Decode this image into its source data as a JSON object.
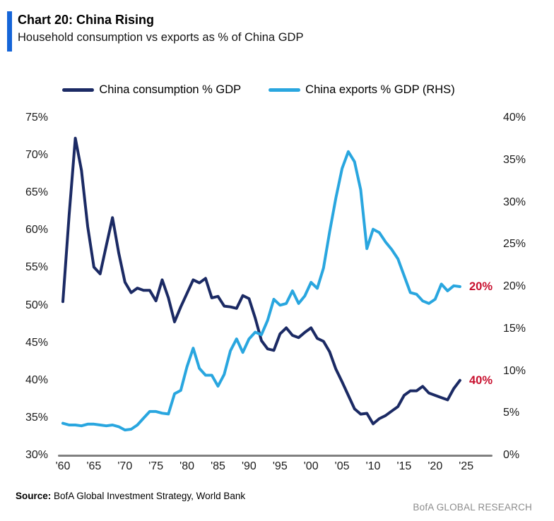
{
  "header": {
    "title": "Chart 20: China Rising",
    "subtitle": "Household consumption vs exports as % of China GDP",
    "accent_color": "#1565d8"
  },
  "footer": {
    "source_label": "Source:",
    "source_text": " BofA Global Investment Strategy, World Bank",
    "brand": "BofA GLOBAL RESEARCH",
    "brand_color": "#8c8c8c"
  },
  "chart_data": {
    "type": "line",
    "title": "Chart 20: China Rising",
    "subtitle": "Household consumption vs exports as % of China GDP",
    "legend_position": "top-center",
    "grid": false,
    "axis_line_color": "#808080",
    "annotation_color": "#c8102e",
    "x": [
      1960,
      1961,
      1962,
      1963,
      1964,
      1965,
      1966,
      1967,
      1968,
      1969,
      1970,
      1971,
      1972,
      1973,
      1974,
      1975,
      1976,
      1977,
      1978,
      1979,
      1980,
      1981,
      1982,
      1983,
      1984,
      1985,
      1986,
      1987,
      1988,
      1989,
      1990,
      1991,
      1992,
      1993,
      1994,
      1995,
      1996,
      1997,
      1998,
      1999,
      2000,
      2001,
      2002,
      2003,
      2004,
      2005,
      2006,
      2007,
      2008,
      2009,
      2010,
      2011,
      2012,
      2013,
      2014,
      2015,
      2016,
      2017,
      2018,
      2019,
      2020,
      2021,
      2022,
      2023,
      2024
    ],
    "series": [
      {
        "key": "consumption",
        "name": "China consumption % GDP",
        "axis": "left",
        "color": "#1b2a64",
        "values": [
          50.5,
          62.0,
          72.3,
          68.0,
          60.5,
          55.1,
          54.2,
          58.0,
          61.7,
          57.0,
          53.1,
          51.7,
          52.3,
          52.0,
          52.0,
          50.6,
          53.4,
          51.0,
          47.8,
          49.8,
          51.6,
          53.4,
          53.0,
          53.6,
          51.0,
          51.2,
          49.9,
          49.8,
          49.6,
          51.3,
          50.9,
          48.3,
          45.3,
          44.2,
          44.0,
          46.2,
          47.0,
          46.0,
          45.7,
          46.4,
          47.0,
          45.6,
          45.2,
          43.8,
          41.5,
          39.8,
          38.0,
          36.2,
          35.5,
          35.6,
          34.2,
          34.9,
          35.3,
          35.9,
          36.5,
          38.0,
          38.6,
          38.6,
          39.2,
          38.3,
          38.0,
          37.7,
          37.4,
          38.9,
          40.0
        ]
      },
      {
        "key": "exports",
        "name": "China exports % GDP (RHS)",
        "axis": "right",
        "color": "#29a6df",
        "values": [
          3.8,
          3.6,
          3.6,
          3.5,
          3.7,
          3.7,
          3.6,
          3.5,
          3.6,
          3.4,
          3.0,
          3.1,
          3.6,
          4.4,
          5.2,
          5.2,
          5.0,
          4.9,
          7.3,
          7.7,
          10.5,
          12.7,
          10.3,
          9.5,
          9.5,
          8.2,
          9.6,
          12.4,
          13.8,
          12.2,
          13.8,
          14.6,
          14.3,
          16.0,
          18.5,
          17.8,
          18.0,
          19.5,
          18.0,
          18.9,
          20.5,
          19.8,
          22.2,
          26.5,
          30.5,
          34.0,
          36.0,
          34.8,
          31.5,
          24.5,
          26.8,
          26.4,
          25.3,
          24.4,
          23.3,
          21.3,
          19.3,
          19.1,
          18.3,
          18.0,
          18.5,
          20.3,
          19.5,
          20.1,
          20.0
        ]
      }
    ],
    "left_axis": {
      "min": 30,
      "max": 75,
      "tick_values": [
        75,
        70,
        65,
        60,
        55,
        50,
        45,
        40,
        35,
        30
      ],
      "tick_labels": [
        "75%",
        "70%",
        "65%",
        "60%",
        "55%",
        "50%",
        "45%",
        "40%",
        "35%",
        "30%"
      ]
    },
    "right_axis": {
      "min": 0,
      "max": 40,
      "tick_values": [
        40,
        35,
        30,
        25,
        20,
        15,
        10,
        5,
        0
      ],
      "tick_labels": [
        "40%",
        "35%",
        "30%",
        "25%",
        "20%",
        "15%",
        "10%",
        "5%",
        "0%"
      ]
    },
    "x_axis": {
      "tick_years": [
        1960,
        1965,
        1970,
        1975,
        1980,
        1985,
        1990,
        1995,
        2000,
        2005,
        2010,
        2015,
        2020,
        2025
      ],
      "tick_labels": [
        "'60",
        "'65",
        "'70",
        "'75",
        "'80",
        "'85",
        "'90",
        "'95",
        "'00",
        "'05",
        "'10",
        "'15",
        "'20",
        "'25"
      ]
    },
    "annotations": [
      {
        "label": "20%",
        "axis": "right",
        "value": 20,
        "series": "exports"
      },
      {
        "label": "40%",
        "axis": "left",
        "value": 40,
        "series": "consumption"
      }
    ]
  }
}
